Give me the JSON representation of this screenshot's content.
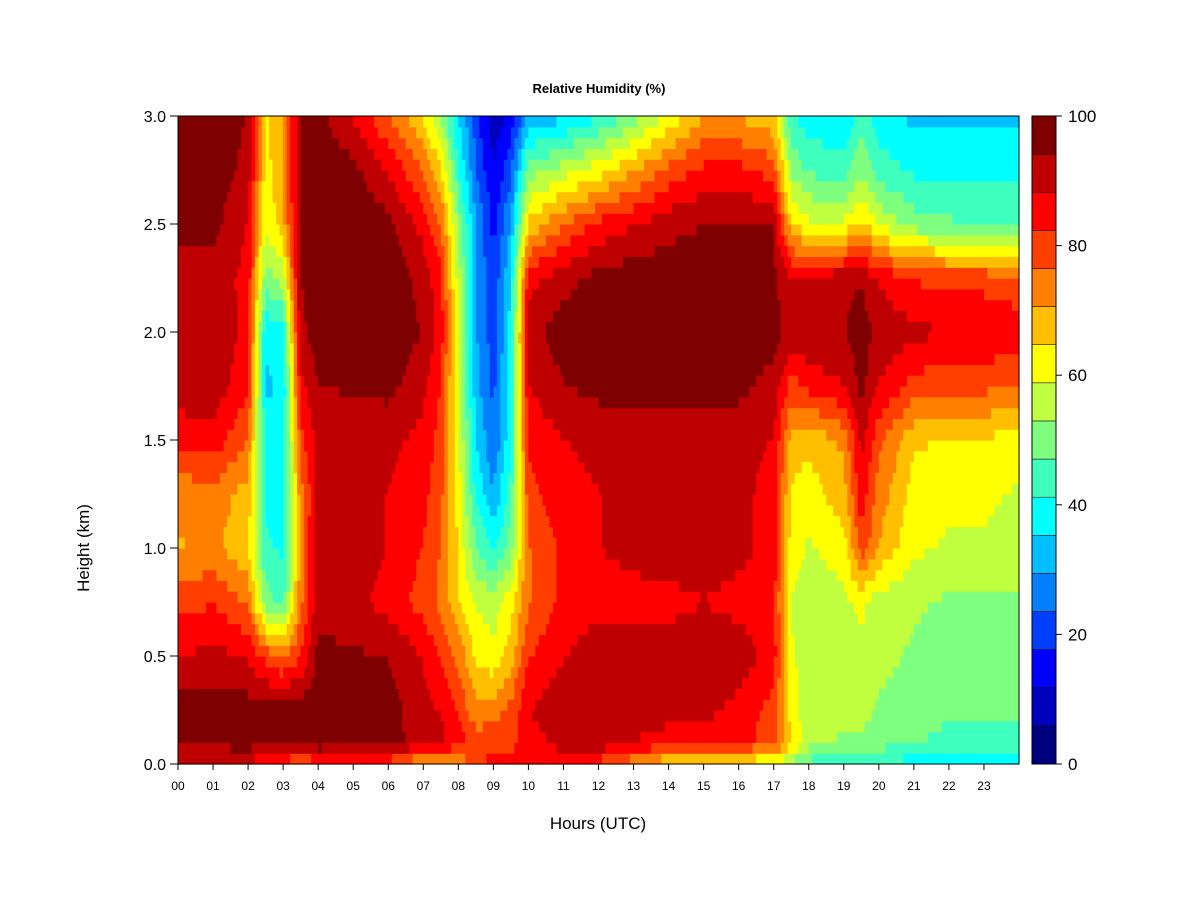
{
  "chart_data": {
    "type": "heatmap",
    "title": "Relative Humidity (%)",
    "xlabel": "Hours (UTC)",
    "ylabel": "Height (km)",
    "xlim": [
      0,
      24
    ],
    "ylim": [
      0.0,
      3.0
    ],
    "x_tick_labels": [
      "00",
      "01",
      "02",
      "03",
      "04",
      "05",
      "06",
      "07",
      "08",
      "09",
      "10",
      "11",
      "12",
      "13",
      "14",
      "15",
      "16",
      "17",
      "18",
      "19",
      "20",
      "21",
      "22",
      "23"
    ],
    "y_tick_labels": [
      "0.0",
      "0.5",
      "1.0",
      "1.5",
      "2.0",
      "2.5",
      "3.0"
    ],
    "colorbar": {
      "range": [
        0,
        100
      ],
      "tick_labels": [
        "0",
        "20",
        "40",
        "60",
        "80",
        "100"
      ],
      "colors": [
        "#00007f",
        "#0000bf",
        "#0000ff",
        "#003fff",
        "#007fff",
        "#00bfff",
        "#00ffff",
        "#3fffbf",
        "#7fff7f",
        "#bfff3f",
        "#ffff00",
        "#ffbf00",
        "#ff7f00",
        "#ff3f00",
        "#ff0000",
        "#bf0000",
        "#7f0000"
      ]
    },
    "height_levels_km": [
      0.0,
      0.1,
      0.25,
      0.5,
      0.75,
      1.0,
      1.25,
      1.5,
      1.75,
      2.0,
      2.25,
      2.5,
      2.75,
      3.0
    ],
    "time_hours": [
      0,
      1,
      2,
      2.5,
      3,
      3.5,
      4,
      5,
      6,
      7,
      7.5,
      8,
      8.5,
      9,
      9.5,
      10,
      11,
      12,
      13,
      14,
      15,
      16,
      17,
      17.5,
      18,
      19,
      19.5,
      20,
      21,
      22,
      23,
      24
    ],
    "relative_humidity_percent": [
      [
        88,
        88,
        86,
        84,
        80,
        72,
        80,
        82,
        80,
        66,
        64,
        70,
        80,
        85,
        85,
        87,
        85,
        80,
        72,
        64,
        60,
        60,
        58,
        52,
        45,
        42,
        40,
        40,
        38,
        38,
        38,
        38
      ],
      [
        96,
        96,
        97,
        97,
        98,
        98,
        99,
        97,
        96,
        92,
        90,
        85,
        80,
        80,
        80,
        86,
        90,
        92,
        88,
        86,
        86,
        84,
        80,
        65,
        55,
        52,
        52,
        50,
        48,
        45,
        45,
        45
      ],
      [
        97,
        97,
        97,
        97,
        98,
        98,
        99,
        98,
        97,
        90,
        88,
        82,
        72,
        74,
        78,
        88,
        92,
        94,
        92,
        90,
        90,
        86,
        80,
        62,
        55,
        55,
        55,
        52,
        50,
        48,
        48,
        48
      ],
      [
        88,
        90,
        88,
        80,
        75,
        82,
        96,
        95,
        94,
        88,
        82,
        75,
        64,
        60,
        68,
        82,
        88,
        92,
        92,
        92,
        94,
        92,
        85,
        60,
        55,
        56,
        58,
        55,
        52,
        50,
        50,
        50
      ],
      [
        80,
        82,
        75,
        50,
        45,
        75,
        92,
        90,
        86,
        80,
        75,
        65,
        58,
        56,
        62,
        76,
        84,
        86,
        86,
        86,
        88,
        86,
        84,
        58,
        55,
        57,
        60,
        56,
        54,
        52,
        52,
        52
      ],
      [
        70,
        72,
        66,
        42,
        40,
        72,
        94,
        92,
        88,
        82,
        76,
        64,
        48,
        40,
        50,
        76,
        84,
        88,
        90,
        92,
        92,
        90,
        86,
        62,
        58,
        62,
        80,
        70,
        60,
        58,
        58,
        56
      ],
      [
        72,
        74,
        68,
        40,
        38,
        74,
        90,
        90,
        88,
        84,
        78,
        62,
        40,
        30,
        44,
        80,
        86,
        88,
        90,
        92,
        90,
        90,
        86,
        64,
        62,
        68,
        86,
        74,
        62,
        60,
        60,
        58
      ],
      [
        84,
        86,
        76,
        40,
        38,
        80,
        90,
        90,
        90,
        86,
        80,
        60,
        36,
        24,
        40,
        84,
        88,
        90,
        92,
        92,
        90,
        90,
        88,
        68,
        66,
        72,
        90,
        78,
        66,
        64,
        64,
        62
      ],
      [
        92,
        92,
        84,
        34,
        36,
        86,
        94,
        95,
        96,
        90,
        82,
        58,
        32,
        22,
        38,
        88,
        94,
        96,
        96,
        96,
        96,
        96,
        92,
        80,
        84,
        88,
        96,
        88,
        80,
        78,
        78,
        76
      ],
      [
        94,
        94,
        86,
        36,
        40,
        92,
        98,
        98,
        98,
        94,
        86,
        58,
        30,
        20,
        38,
        92,
        97,
        98,
        98,
        98,
        98,
        98,
        96,
        92,
        94,
        94,
        97,
        92,
        90,
        88,
        88,
        86
      ],
      [
        90,
        92,
        86,
        50,
        55,
        94,
        99,
        99,
        98,
        92,
        84,
        56,
        30,
        18,
        36,
        86,
        92,
        96,
        98,
        98,
        98,
        98,
        96,
        88,
        90,
        92,
        94,
        88,
        82,
        80,
        80,
        78
      ],
      [
        96,
        96,
        88,
        60,
        68,
        96,
        99,
        99,
        96,
        86,
        76,
        52,
        30,
        16,
        30,
        66,
        76,
        84,
        88,
        92,
        94,
        94,
        94,
        66,
        60,
        60,
        66,
        58,
        50,
        48,
        46,
        44
      ],
      [
        98,
        98,
        92,
        62,
        70,
        96,
        99,
        96,
        88,
        76,
        66,
        42,
        24,
        12,
        22,
        50,
        56,
        62,
        70,
        78,
        84,
        84,
        80,
        52,
        46,
        44,
        52,
        44,
        40,
        40,
        40,
        40
      ],
      [
        98,
        98,
        94,
        64,
        70,
        96,
        96,
        88,
        76,
        64,
        52,
        36,
        20,
        8,
        14,
        30,
        34,
        40,
        50,
        60,
        70,
        70,
        66,
        42,
        38,
        36,
        44,
        38,
        34,
        34,
        34,
        34
      ]
    ]
  }
}
